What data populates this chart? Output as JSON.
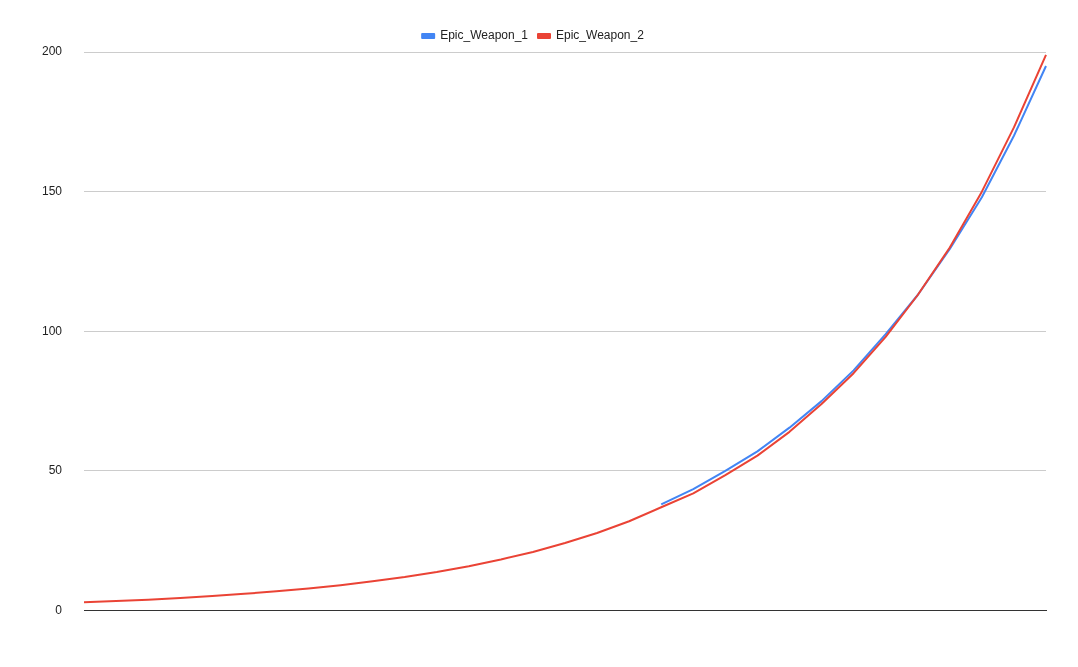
{
  "chart_data": {
    "type": "line",
    "categories": [
      null,
      null,
      null,
      null,
      null,
      null,
      null,
      null,
      null,
      null,
      null,
      null,
      null,
      null,
      null,
      null,
      null,
      null,
      null,
      null,
      null,
      null,
      null,
      null,
      null,
      null,
      null,
      null,
      null,
      null,
      null
    ],
    "series": [
      {
        "name": "Epic_Weapon_1",
        "color": "#4285f4",
        "values": [
          null,
          null,
          null,
          null,
          null,
          null,
          null,
          null,
          null,
          null,
          null,
          null,
          null,
          null,
          null,
          null,
          null,
          null,
          38,
          43.5,
          50,
          57,
          65.5,
          75,
          86,
          99,
          113,
          129.5,
          148,
          170,
          195
        ]
      },
      {
        "name": "Epic_Weapon_2",
        "color": "#ea4335",
        "values": [
          3.0,
          3.4,
          3.9,
          4.5,
          5.2,
          6.0,
          6.9,
          7.9,
          9.1,
          10.5,
          12.0,
          13.8,
          15.9,
          18.3,
          21,
          24.2,
          27.8,
          32,
          37,
          42,
          48.5,
          55.5,
          64,
          74,
          85,
          98,
          113,
          130,
          150,
          173,
          199
        ]
      }
    ],
    "ylim": [
      0,
      200
    ],
    "yticks": [
      0,
      50,
      100,
      150,
      200
    ],
    "grid": "y",
    "legend": "top",
    "marker": "none",
    "line_style": "solid"
  }
}
